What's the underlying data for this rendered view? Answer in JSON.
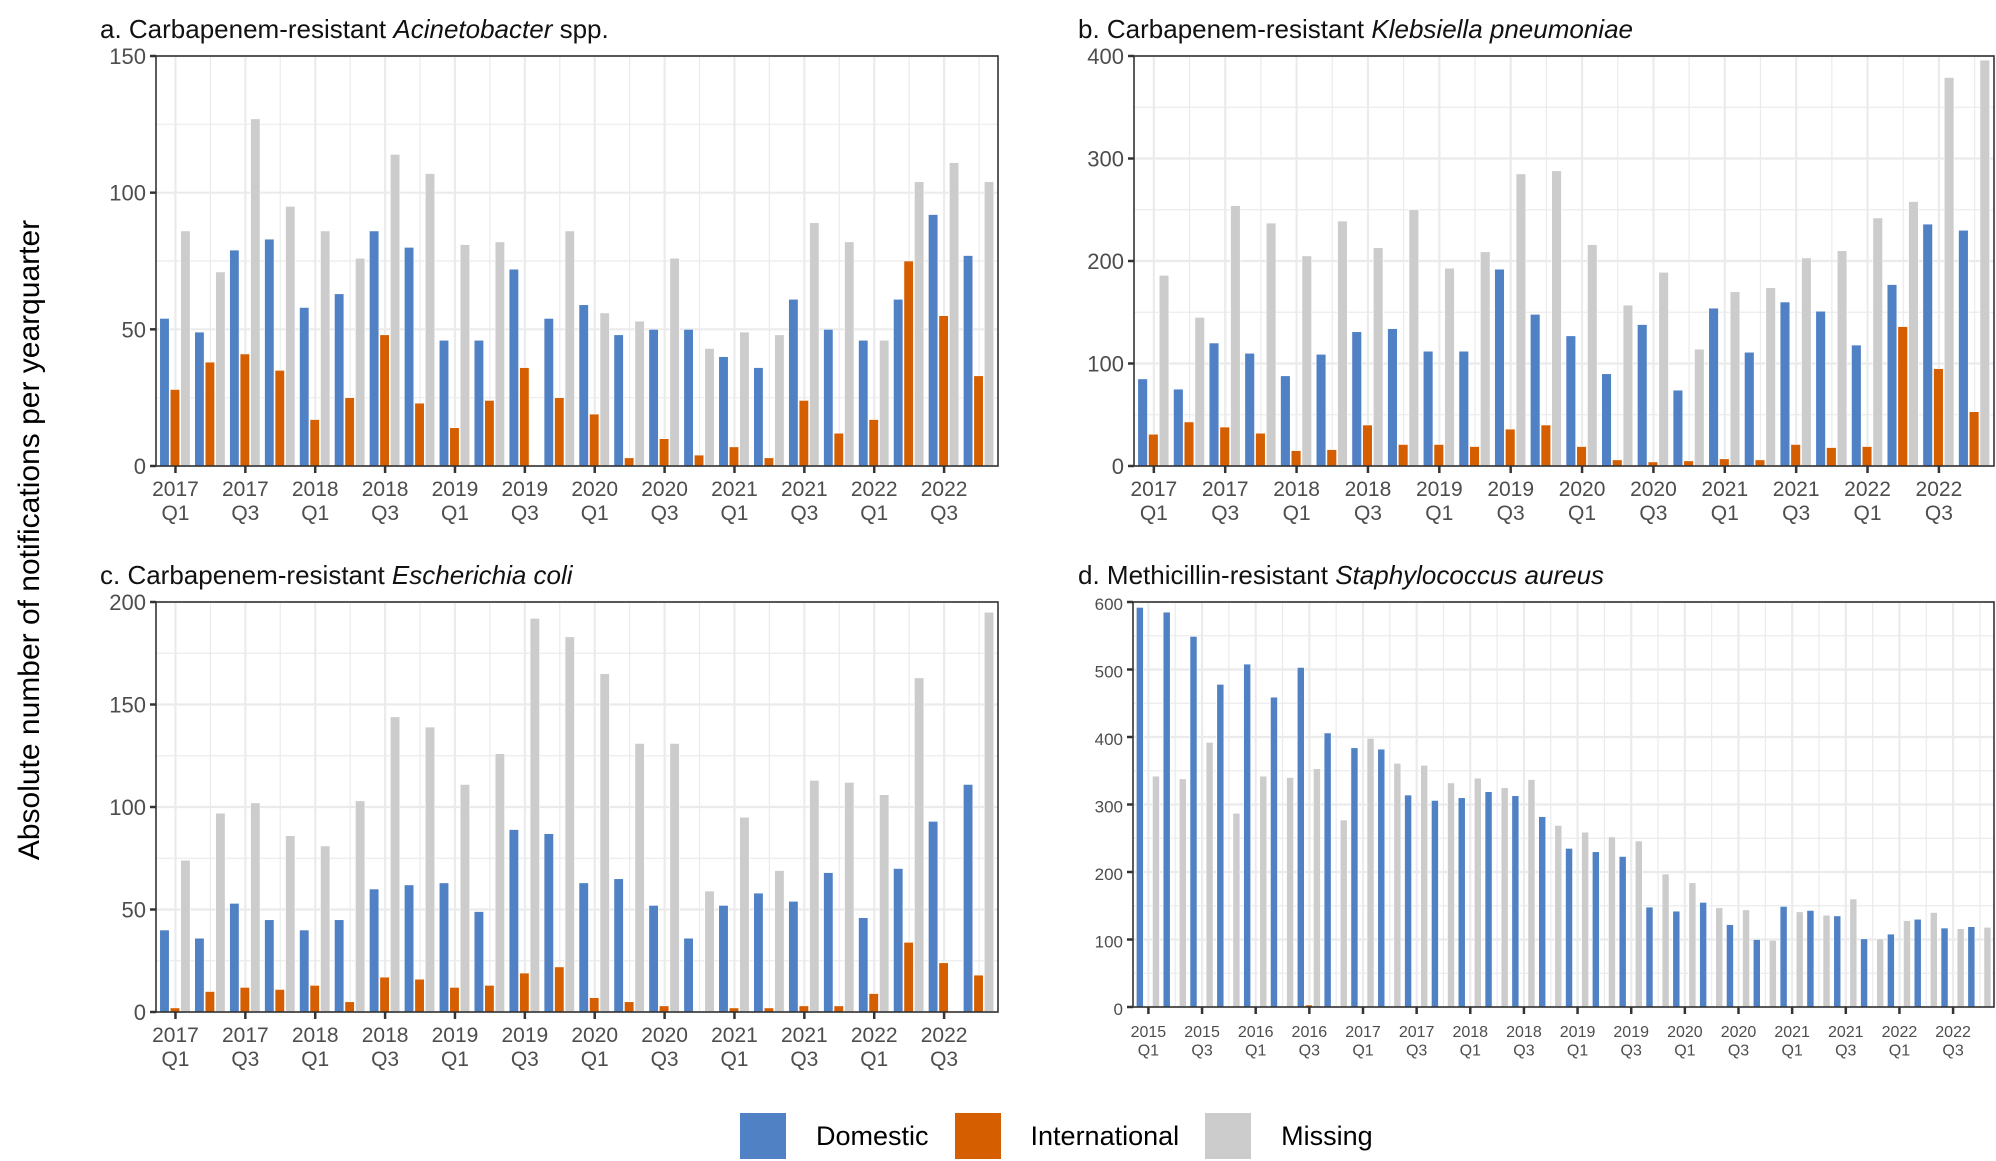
{
  "figure": {
    "y_axis_title": "Absolute number of notifications per yearquarter",
    "legend": [
      {
        "key": "domestic",
        "label": "Domestic",
        "color": "#4F81C4"
      },
      {
        "key": "international",
        "label": "International",
        "color": "#D55E00"
      },
      {
        "key": "missing",
        "label": "Missing",
        "color": "#CCCCCC"
      }
    ]
  },
  "chart_data": [
    {
      "type": "bar",
      "id": "a",
      "title_prefix": "a. Carbapenem-resistant ",
      "title_italic": "Acinetobacter",
      "title_suffix": " spp.",
      "xlabel": "",
      "ylabel": "Absolute number of notifications per yearquarter",
      "ylim": [
        0,
        150
      ],
      "yticks": [
        0,
        50,
        100,
        150
      ],
      "grid": true,
      "legend": "bottom",
      "categories": [
        "2017 Q1",
        "2017 Q2",
        "2017 Q3",
        "2017 Q4",
        "2018 Q1",
        "2018 Q2",
        "2018 Q3",
        "2018 Q4",
        "2019 Q1",
        "2019 Q2",
        "2019 Q3",
        "2019 Q4",
        "2020 Q1",
        "2020 Q2",
        "2020 Q3",
        "2020 Q4",
        "2021 Q1",
        "2021 Q2",
        "2021 Q3",
        "2021 Q4",
        "2022 Q1",
        "2022 Q2",
        "2022 Q3",
        "2022 Q4"
      ],
      "tick_labels": [
        [
          "2017",
          "Q1"
        ],
        [
          "2017",
          "Q3"
        ],
        [
          "2018",
          "Q1"
        ],
        [
          "2018",
          "Q3"
        ],
        [
          "2019",
          "Q1"
        ],
        [
          "2019",
          "Q3"
        ],
        [
          "2020",
          "Q1"
        ],
        [
          "2020",
          "Q3"
        ],
        [
          "2021",
          "Q1"
        ],
        [
          "2021",
          "Q3"
        ],
        [
          "2022",
          "Q1"
        ],
        [
          "2022",
          "Q3"
        ]
      ],
      "series": [
        {
          "name": "Domestic",
          "values": [
            54,
            49,
            79,
            83,
            58,
            63,
            86,
            80,
            46,
            46,
            72,
            54,
            59,
            48,
            50,
            50,
            40,
            36,
            61,
            50,
            46,
            61,
            92,
            77
          ]
        },
        {
          "name": "International",
          "values": [
            28,
            38,
            41,
            35,
            17,
            25,
            48,
            23,
            14,
            24,
            36,
            25,
            19,
            3,
            10,
            4,
            7,
            3,
            24,
            12,
            17,
            75,
            55,
            33
          ]
        },
        {
          "name": "Missing",
          "values": [
            86,
            71,
            127,
            95,
            86,
            76,
            114,
            107,
            81,
            82,
            0,
            86,
            56,
            53,
            76,
            43,
            49,
            48,
            89,
            82,
            46,
            104,
            111,
            104
          ]
        }
      ]
    },
    {
      "type": "bar",
      "id": "b",
      "title_prefix": "b. Carbapenem-resistant ",
      "title_italic": "Klebsiella pneumoniae",
      "title_suffix": "",
      "xlabel": "",
      "ylabel": "Absolute number of notifications per yearquarter",
      "ylim": [
        0,
        400
      ],
      "yticks": [
        0,
        100,
        200,
        300,
        400
      ],
      "grid": true,
      "legend": "bottom",
      "categories": [
        "2017 Q1",
        "2017 Q2",
        "2017 Q3",
        "2017 Q4",
        "2018 Q1",
        "2018 Q2",
        "2018 Q3",
        "2018 Q4",
        "2019 Q1",
        "2019 Q2",
        "2019 Q3",
        "2019 Q4",
        "2020 Q1",
        "2020 Q2",
        "2020 Q3",
        "2020 Q4",
        "2021 Q1",
        "2021 Q2",
        "2021 Q3",
        "2021 Q4",
        "2022 Q1",
        "2022 Q2",
        "2022 Q3",
        "2022 Q4"
      ],
      "tick_labels": [
        [
          "2017",
          "Q1"
        ],
        [
          "2017",
          "Q3"
        ],
        [
          "2018",
          "Q1"
        ],
        [
          "2018",
          "Q3"
        ],
        [
          "2019",
          "Q1"
        ],
        [
          "2019",
          "Q3"
        ],
        [
          "2020",
          "Q1"
        ],
        [
          "2020",
          "Q3"
        ],
        [
          "2021",
          "Q1"
        ],
        [
          "2021",
          "Q3"
        ],
        [
          "2022",
          "Q1"
        ],
        [
          "2022",
          "Q3"
        ]
      ],
      "series": [
        {
          "name": "Domestic",
          "values": [
            85,
            75,
            120,
            110,
            88,
            109,
            131,
            134,
            112,
            112,
            192,
            148,
            127,
            90,
            138,
            74,
            154,
            111,
            160,
            151,
            118,
            177,
            236,
            230
          ]
        },
        {
          "name": "International",
          "values": [
            31,
            43,
            38,
            32,
            15,
            16,
            40,
            21,
            21,
            19,
            36,
            40,
            19,
            6,
            4,
            5,
            7,
            6,
            21,
            18,
            19,
            136,
            95,
            53
          ]
        },
        {
          "name": "Missing",
          "values": [
            186,
            145,
            254,
            237,
            205,
            239,
            213,
            250,
            193,
            209,
            285,
            288,
            216,
            157,
            189,
            114,
            170,
            174,
            203,
            210,
            242,
            258,
            379,
            396
          ]
        }
      ]
    },
    {
      "type": "bar",
      "id": "c",
      "title_prefix": "c. Carbapenem-resistant ",
      "title_italic": "Escherichia coli",
      "title_suffix": "",
      "xlabel": "",
      "ylabel": "Absolute number of notifications per yearquarter",
      "ylim": [
        0,
        200
      ],
      "yticks": [
        0,
        50,
        100,
        150,
        200
      ],
      "grid": true,
      "legend": "bottom",
      "categories": [
        "2017 Q1",
        "2017 Q2",
        "2017 Q3",
        "2017 Q4",
        "2018 Q1",
        "2018 Q2",
        "2018 Q3",
        "2018 Q4",
        "2019 Q1",
        "2019 Q2",
        "2019 Q3",
        "2019 Q4",
        "2020 Q1",
        "2020 Q2",
        "2020 Q3",
        "2020 Q4",
        "2021 Q1",
        "2021 Q2",
        "2021 Q3",
        "2021 Q4",
        "2022 Q1",
        "2022 Q2",
        "2022 Q3",
        "2022 Q4"
      ],
      "tick_labels": [
        [
          "2017",
          "Q1"
        ],
        [
          "2017",
          "Q3"
        ],
        [
          "2018",
          "Q1"
        ],
        [
          "2018",
          "Q3"
        ],
        [
          "2019",
          "Q1"
        ],
        [
          "2019",
          "Q3"
        ],
        [
          "2020",
          "Q1"
        ],
        [
          "2020",
          "Q3"
        ],
        [
          "2021",
          "Q1"
        ],
        [
          "2021",
          "Q3"
        ],
        [
          "2022",
          "Q1"
        ],
        [
          "2022",
          "Q3"
        ]
      ],
      "series": [
        {
          "name": "Domestic",
          "values": [
            40,
            36,
            53,
            45,
            40,
            45,
            60,
            62,
            63,
            49,
            89,
            87,
            63,
            65,
            52,
            36,
            52,
            58,
            54,
            68,
            46,
            70,
            93,
            111
          ]
        },
        {
          "name": "International",
          "values": [
            2,
            10,
            12,
            11,
            13,
            5,
            17,
            16,
            12,
            13,
            19,
            22,
            7,
            5,
            3,
            0,
            2,
            2,
            3,
            3,
            9,
            34,
            24,
            18
          ]
        },
        {
          "name": "Missing",
          "values": [
            74,
            97,
            102,
            86,
            81,
            103,
            144,
            139,
            111,
            126,
            192,
            183,
            165,
            131,
            131,
            59,
            95,
            69,
            113,
            112,
            106,
            163,
            0,
            195
          ]
        }
      ]
    },
    {
      "type": "bar",
      "id": "d",
      "title_prefix": "d. Methicillin-resistant ",
      "title_italic": "Staphylococcus aureus",
      "title_suffix": "",
      "xlabel": "",
      "ylabel": "Absolute number of notifications per yearquarter",
      "ylim": [
        0,
        600
      ],
      "yticks": [
        0,
        100,
        200,
        300,
        400,
        500,
        600
      ],
      "grid": true,
      "legend": "bottom",
      "categories": [
        "2015 Q1",
        "2015 Q2",
        "2015 Q3",
        "2015 Q4",
        "2016 Q1",
        "2016 Q2",
        "2016 Q3",
        "2016 Q4",
        "2017 Q1",
        "2017 Q2",
        "2017 Q3",
        "2017 Q4",
        "2018 Q1",
        "2018 Q2",
        "2018 Q3",
        "2018 Q4",
        "2019 Q1",
        "2019 Q2",
        "2019 Q3",
        "2019 Q4",
        "2020 Q1",
        "2020 Q2",
        "2020 Q3",
        "2020 Q4",
        "2021 Q1",
        "2021 Q2",
        "2021 Q3",
        "2021 Q4",
        "2022 Q1",
        "2022 Q2",
        "2022 Q3",
        "2022 Q4"
      ],
      "tick_labels": [
        [
          "2015",
          "Q1"
        ],
        [
          "2015",
          "Q3"
        ],
        [
          "2016",
          "Q1"
        ],
        [
          "2016",
          "Q3"
        ],
        [
          "2017",
          "Q1"
        ],
        [
          "2017",
          "Q3"
        ],
        [
          "2018",
          "Q1"
        ],
        [
          "2018",
          "Q3"
        ],
        [
          "2019",
          "Q1"
        ],
        [
          "2019",
          "Q3"
        ],
        [
          "2020",
          "Q1"
        ],
        [
          "2020",
          "Q3"
        ],
        [
          "2021",
          "Q1"
        ],
        [
          "2021",
          "Q3"
        ],
        [
          "2022",
          "Q1"
        ],
        [
          "2022",
          "Q3"
        ]
      ],
      "series": [
        {
          "name": "Domestic",
          "values": [
            592,
            585,
            549,
            478,
            508,
            459,
            503,
            406,
            384,
            382,
            314,
            306,
            310,
            319,
            313,
            282,
            235,
            230,
            223,
            148,
            142,
            155,
            122,
            100,
            149,
            143,
            135,
            101,
            108,
            130,
            117,
            119
          ]
        },
        {
          "name": "International",
          "values": [
            0,
            0,
            0,
            1,
            0,
            0,
            3,
            0,
            0,
            0,
            0,
            1,
            0,
            0,
            0,
            0,
            0,
            0,
            1,
            0,
            0,
            0,
            0,
            0,
            0,
            0,
            0,
            0,
            0,
            0,
            0,
            0
          ]
        },
        {
          "name": "Missing",
          "values": [
            342,
            338,
            392,
            287,
            342,
            340,
            353,
            277,
            398,
            361,
            358,
            332,
            339,
            325,
            337,
            269,
            259,
            252,
            246,
            197,
            184,
            147,
            144,
            99,
            141,
            136,
            160,
            101,
            128,
            140,
            116,
            118
          ]
        }
      ]
    }
  ]
}
